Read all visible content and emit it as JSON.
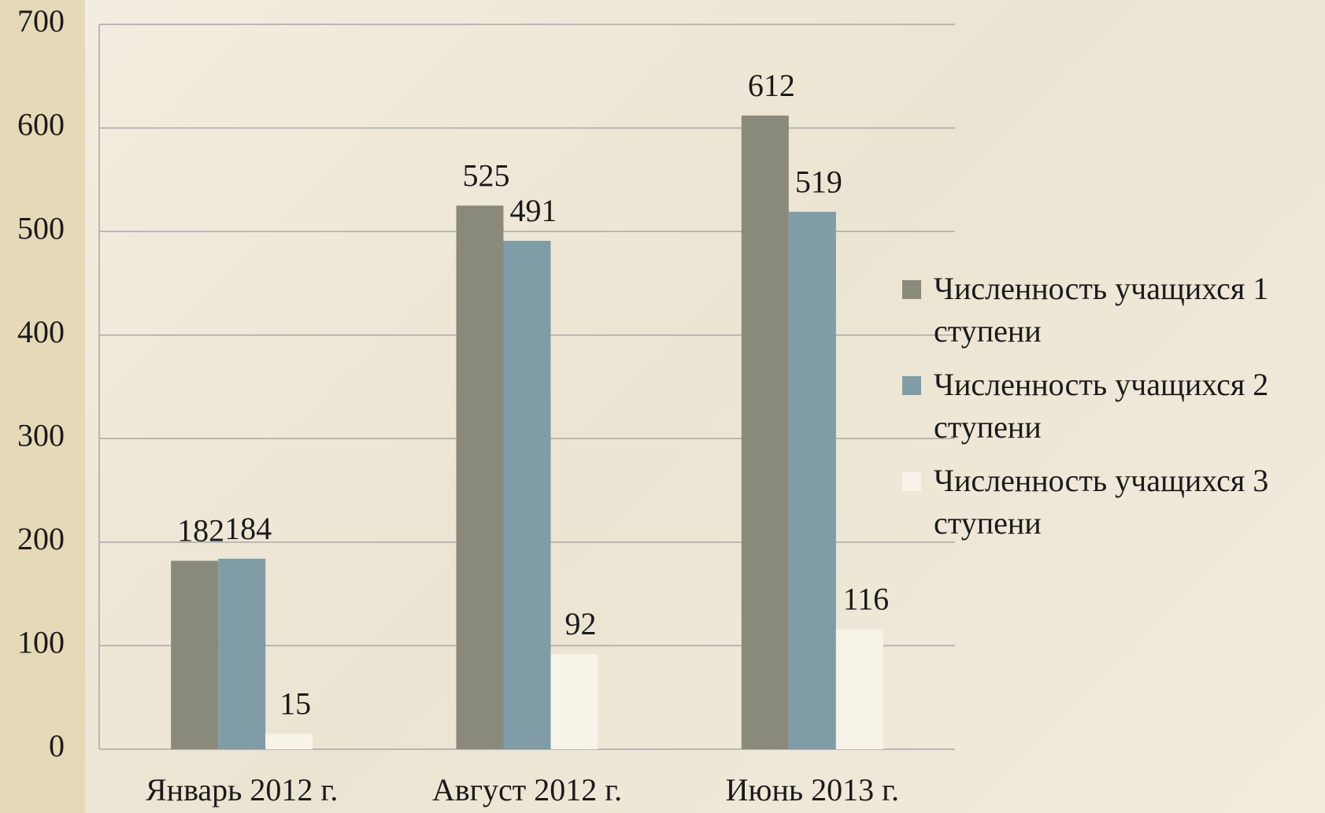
{
  "chart_data": {
    "type": "bar",
    "categories": [
      "Январь 2012 г.",
      "Август 2012 г.",
      "Июнь 2013 г."
    ],
    "series": [
      {
        "name": "Численность учащихся 1 ступени",
        "color": "#8a8a7c",
        "values": [
          182,
          525,
          612
        ]
      },
      {
        "name": "Численность учащихся 2 ступени",
        "color": "#7f9ca7",
        "values": [
          184,
          491,
          519
        ]
      },
      {
        "name": "Численность учащихся 3 ступени",
        "color": "#f7f3e8",
        "values": [
          15,
          92,
          116
        ]
      }
    ],
    "ylim": [
      0,
      700
    ],
    "yticks": [
      0,
      100,
      200,
      300,
      400,
      500,
      600,
      700
    ],
    "grid": true,
    "legend": "right"
  }
}
